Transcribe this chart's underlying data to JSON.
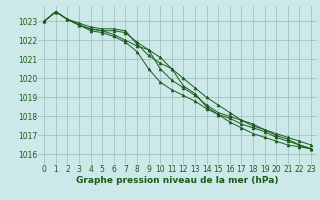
{
  "x": [
    0,
    1,
    2,
    3,
    4,
    5,
    6,
    7,
    8,
    9,
    10,
    11,
    12,
    13,
    14,
    15,
    16,
    17,
    18,
    19,
    20,
    21,
    22,
    23
  ],
  "series": [
    [
      1023.0,
      1023.5,
      1023.1,
      1022.8,
      1022.6,
      1022.5,
      1022.5,
      1022.4,
      1021.9,
      1021.5,
      1021.1,
      1020.5,
      1019.6,
      1019.2,
      1018.5,
      1018.1,
      1017.9,
      1017.6,
      1017.4,
      1017.2,
      1016.9,
      1016.7,
      1016.5,
      1016.3
    ],
    [
      1023.0,
      1023.5,
      1023.1,
      1022.8,
      1022.6,
      1022.5,
      1022.3,
      1022.0,
      1021.7,
      1021.5,
      1020.5,
      1019.9,
      1019.5,
      1019.1,
      1018.6,
      1018.2,
      1018.0,
      1017.8,
      1017.6,
      1017.3,
      1017.0,
      1016.8,
      1016.5,
      1016.3
    ],
    [
      1023.0,
      1023.5,
      1023.1,
      1022.9,
      1022.7,
      1022.6,
      1022.6,
      1022.5,
      1021.8,
      1021.2,
      1020.8,
      1020.5,
      1020.0,
      1019.5,
      1019.0,
      1018.6,
      1018.2,
      1017.8,
      1017.5,
      1017.3,
      1017.1,
      1016.9,
      1016.7,
      1016.5
    ],
    [
      1023.0,
      1023.5,
      1023.1,
      1022.8,
      1022.5,
      1022.4,
      1022.2,
      1021.9,
      1021.4,
      1020.5,
      1019.8,
      1019.4,
      1019.1,
      1018.8,
      1018.4,
      1018.1,
      1017.7,
      1017.4,
      1017.1,
      1016.9,
      1016.7,
      1016.5,
      1016.4,
      1016.3
    ]
  ],
  "line_color": "#1a5c1a",
  "marker": "^",
  "markersize": 2.0,
  "bg_color": "#cce8e8",
  "grid_color": "#99bbbb",
  "tick_color": "#1a5c1a",
  "label_color": "#1a5c1a",
  "ylim": [
    1015.5,
    1023.8
  ],
  "yticks": [
    1016,
    1017,
    1018,
    1019,
    1020,
    1021,
    1022,
    1023
  ],
  "xlim": [
    -0.5,
    23.5
  ],
  "xticks": [
    0,
    1,
    2,
    3,
    4,
    5,
    6,
    7,
    8,
    9,
    10,
    11,
    12,
    13,
    14,
    15,
    16,
    17,
    18,
    19,
    20,
    21,
    22,
    23
  ],
  "xlabel": "Graphe pression niveau de la mer (hPa)",
  "xlabel_fontsize": 6.5,
  "tick_fontsize": 5.5,
  "linewidth": 0.7
}
